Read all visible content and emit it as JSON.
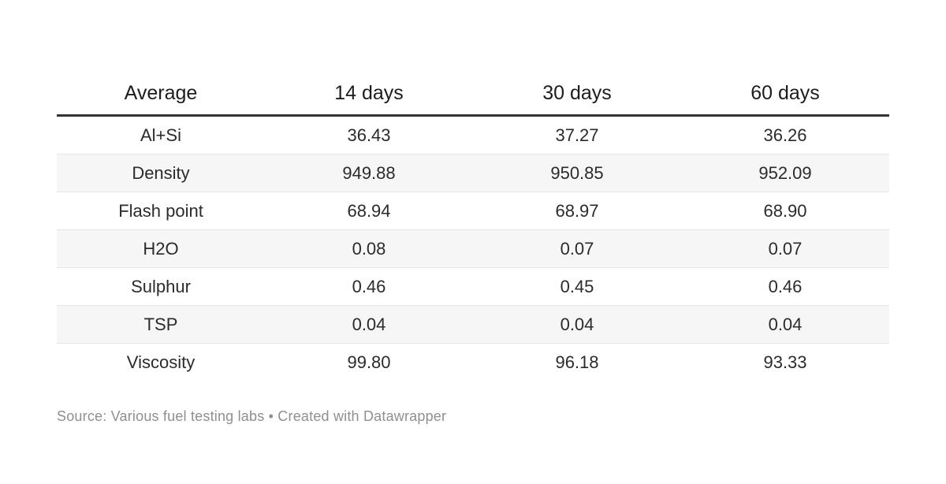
{
  "chart_data": {
    "type": "table",
    "columns": [
      "Average",
      "14 days",
      "30 days",
      "60 days"
    ],
    "rows": [
      {
        "label": "Al+Si",
        "values": [
          "36.43",
          "37.27",
          "36.26"
        ]
      },
      {
        "label": "Density",
        "values": [
          "949.88",
          "950.85",
          "952.09"
        ]
      },
      {
        "label": "Flash point",
        "values": [
          "68.94",
          "68.97",
          "68.90"
        ]
      },
      {
        "label": "H2O",
        "values": [
          "0.08",
          "0.07",
          "0.07"
        ]
      },
      {
        "label": "Sulphur",
        "values": [
          "0.46",
          "0.45",
          "0.46"
        ]
      },
      {
        "label": "TSP",
        "values": [
          "0.04",
          "0.04",
          "0.04"
        ]
      },
      {
        "label": "Viscosity",
        "values": [
          "99.80",
          "96.18",
          "93.33"
        ]
      }
    ],
    "title": "",
    "layout_hints": {
      "striped_rows": [
        "Density",
        "H2O",
        "TSP"
      ],
      "header_rule": true,
      "grid": "horizontal-only"
    }
  },
  "footer": {
    "attribution": "Source: Various fuel testing labs • Created with Datawrapper"
  },
  "colors": {
    "background": "#ffffff",
    "header_text": "#1d1d1d",
    "body_text": "#2b2b2b",
    "header_rule": "#333333",
    "stripe": "#f6f6f6",
    "row_border": "#e6e6e6",
    "source_text": "#8f8f8f"
  }
}
